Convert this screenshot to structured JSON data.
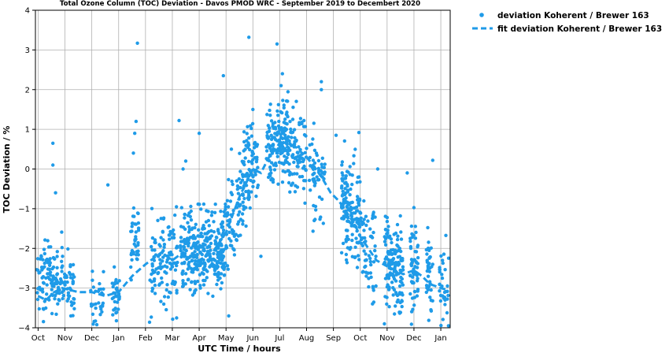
{
  "chart_data": {
    "type": "scatter",
    "title": "Total Ozone Column (TOC) Deviation - Davos PMOD WRC - September 2019 to Decembert 2020",
    "xlabel": "UTC Time / hours",
    "ylabel": "TOC Deviation / %",
    "ylim": [
      -4,
      4
    ],
    "yticks": [
      -4,
      -3,
      -2,
      -1,
      0,
      1,
      2,
      3,
      4
    ],
    "ytick_labels": [
      "−4",
      "−3",
      "−2",
      "−1",
      "0",
      "1",
      "2",
      "3",
      "4"
    ],
    "x_months": [
      "Oct",
      "Nov",
      "Dec",
      "Jan",
      "Feb",
      "Mar",
      "Apr",
      "May",
      "Jun",
      "Jul",
      "Aug",
      "Sep",
      "Oct",
      "Nov",
      "Dec",
      "Jan"
    ],
    "xlim_months": [
      -0.1,
      15.35
    ],
    "grid": true,
    "legend_position": "outside-top-right",
    "colors": {
      "series": "#1f9be8",
      "grid": "#b0b0b0"
    },
    "series": [
      {
        "name": "deviation Koherent  / Brewer 163",
        "kind": "scatter"
      },
      {
        "name": "fit deviation Koherent  / Brewer 163",
        "kind": "dashed-line"
      }
    ],
    "fit_points": [
      {
        "m": 0.0,
        "y": -3.2
      },
      {
        "m": 0.3,
        "y": -3.3
      },
      {
        "m": 0.6,
        "y": -3.1
      },
      {
        "m": 0.9,
        "y": -3.0
      },
      {
        "m": 1.2,
        "y": -3.05
      },
      {
        "m": 1.5,
        "y": -3.1
      },
      {
        "m": 2.0,
        "y": -3.1
      },
      {
        "m": 2.5,
        "y": -3.2
      },
      {
        "m": 3.0,
        "y": -3.1
      },
      {
        "m": 3.5,
        "y": -2.7
      },
      {
        "m": 4.0,
        "y": -2.4
      },
      {
        "m": 4.3,
        "y": -2.25
      },
      {
        "m": 4.6,
        "y": -2.1
      },
      {
        "m": 5.0,
        "y": -2.3
      },
      {
        "m": 5.4,
        "y": -2.1
      },
      {
        "m": 5.7,
        "y": -2.2
      },
      {
        "m": 6.0,
        "y": -2.3
      },
      {
        "m": 6.5,
        "y": -2.1
      },
      {
        "m": 7.0,
        "y": -1.6
      },
      {
        "m": 7.5,
        "y": -0.7
      },
      {
        "m": 8.0,
        "y": 0.0
      },
      {
        "m": 8.3,
        "y": -0.1
      },
      {
        "m": 8.6,
        "y": 0.3
      },
      {
        "m": 9.0,
        "y": 0.65
      },
      {
        "m": 9.3,
        "y": 0.75
      },
      {
        "m": 9.6,
        "y": 0.55
      },
      {
        "m": 10.0,
        "y": 0.3
      },
      {
        "m": 10.3,
        "y": 0.05
      },
      {
        "m": 10.6,
        "y": -0.25
      },
      {
        "m": 10.9,
        "y": -0.6
      },
      {
        "m": 11.2,
        "y": -0.8
      },
      {
        "m": 11.5,
        "y": -1.1
      },
      {
        "m": 11.8,
        "y": -1.4
      },
      {
        "m": 12.0,
        "y": -1.7
      },
      {
        "m": 12.3,
        "y": -2.0
      },
      {
        "m": 12.6,
        "y": -2.3
      },
      {
        "m": 13.0,
        "y": -2.45
      },
      {
        "m": 13.3,
        "y": -2.55
      },
      {
        "m": 13.6,
        "y": -2.65
      },
      {
        "m": 14.0,
        "y": -2.55
      },
      {
        "m": 14.3,
        "y": -2.7
      },
      {
        "m": 14.6,
        "y": -2.9
      },
      {
        "m": 15.0,
        "y": -3.0
      },
      {
        "m": 15.25,
        "y": -3.05
      }
    ],
    "scatter_points": [
      {
        "m": 0.55,
        "y": 0.65
      },
      {
        "m": 0.55,
        "y": 0.1
      },
      {
        "m": 0.65,
        "y": -0.6
      },
      {
        "m": 3.7,
        "y": 3.17
      },
      {
        "m": 3.65,
        "y": 1.2
      },
      {
        "m": 3.6,
        "y": 0.9
      },
      {
        "m": 3.55,
        "y": 0.4
      },
      {
        "m": 2.6,
        "y": -0.4
      },
      {
        "m": 5.25,
        "y": 1.22
      },
      {
        "m": 5.5,
        "y": 0.2
      },
      {
        "m": 5.4,
        "y": 0.0
      },
      {
        "m": 6.0,
        "y": 0.9
      },
      {
        "m": 6.9,
        "y": 2.35
      },
      {
        "m": 7.85,
        "y": 3.32
      },
      {
        "m": 8.9,
        "y": 3.15
      },
      {
        "m": 10.55,
        "y": 2.2
      },
      {
        "m": 10.55,
        "y": 2.0
      },
      {
        "m": 11.1,
        "y": 0.85
      },
      {
        "m": 11.95,
        "y": 0.92
      },
      {
        "m": 12.65,
        "y": 0.0
      },
      {
        "m": 13.75,
        "y": -0.1
      },
      {
        "m": 14.7,
        "y": 0.22
      },
      {
        "m": 8.0,
        "y": 1.5
      },
      {
        "m": 9.1,
        "y": 2.4
      },
      {
        "m": 9.05,
        "y": 2.1
      },
      {
        "m": 7.2,
        "y": 0.5
      },
      {
        "m": 7.4,
        "y": -0.3
      },
      {
        "m": 7.1,
        "y": -3.7
      },
      {
        "m": 8.3,
        "y": -2.2
      },
      {
        "m": 12.9,
        "y": -3.9
      }
    ],
    "scatter_clusters": [
      {
        "m0": -0.05,
        "m1": 0.9,
        "c0": -2.9,
        "c1": -2.6,
        "sd": 0.45,
        "n": 110
      },
      {
        "m0": 0.9,
        "m1": 1.35,
        "c0": -2.8,
        "c1": -3.1,
        "sd": 0.4,
        "n": 45
      },
      {
        "m0": 1.95,
        "m1": 2.45,
        "c0": -3.3,
        "c1": -3.3,
        "sd": 0.35,
        "n": 35
      },
      {
        "m0": 2.75,
        "m1": 3.05,
        "c0": -3.4,
        "c1": -3.1,
        "sd": 0.4,
        "n": 35
      },
      {
        "m0": 3.45,
        "m1": 3.75,
        "c0": -1.8,
        "c1": -1.6,
        "sd": 0.45,
        "n": 40
      },
      {
        "m0": 4.15,
        "m1": 4.4,
        "c0": -2.6,
        "c1": -2.5,
        "sd": 0.6,
        "n": 30
      },
      {
        "m0": 4.45,
        "m1": 5.2,
        "c0": -2.4,
        "c1": -2.1,
        "sd": 0.65,
        "n": 90
      },
      {
        "m0": 5.3,
        "m1": 6.95,
        "c0": -2.2,
        "c1": -2.0,
        "sd": 0.5,
        "n": 330
      },
      {
        "m0": 6.95,
        "m1": 7.5,
        "c0": -1.7,
        "c1": -0.8,
        "sd": 0.55,
        "n": 60
      },
      {
        "m0": 7.5,
        "m1": 8.0,
        "c0": -0.6,
        "c1": 0.3,
        "sd": 0.55,
        "n": 80
      },
      {
        "m0": 8.0,
        "m1": 8.2,
        "c0": 0.3,
        "c1": 0.3,
        "sd": 0.5,
        "n": 25
      },
      {
        "m0": 8.5,
        "m1": 9.3,
        "c0": 0.5,
        "c1": 0.9,
        "sd": 0.55,
        "n": 150
      },
      {
        "m0": 9.3,
        "m1": 10.0,
        "c0": 0.6,
        "c1": 0.3,
        "sd": 0.6,
        "n": 90
      },
      {
        "m0": 10.1,
        "m1": 10.7,
        "c0": -0.2,
        "c1": -0.5,
        "sd": 0.5,
        "n": 60
      },
      {
        "m0": 11.3,
        "m1": 12.0,
        "c0": -0.7,
        "c1": -1.3,
        "sd": 0.6,
        "n": 150
      },
      {
        "m0": 12.0,
        "m1": 12.6,
        "c0": -1.7,
        "c1": -2.1,
        "sd": 0.6,
        "n": 60
      },
      {
        "m0": 12.9,
        "m1": 13.6,
        "c0": -2.3,
        "c1": -2.7,
        "sd": 0.6,
        "n": 150
      },
      {
        "m0": 13.85,
        "m1": 14.15,
        "c0": -2.5,
        "c1": -2.5,
        "sd": 0.55,
        "n": 60
      },
      {
        "m0": 14.45,
        "m1": 14.7,
        "c0": -2.6,
        "c1": -2.9,
        "sd": 0.55,
        "n": 40
      },
      {
        "m0": 14.95,
        "m1": 15.3,
        "c0": -3.0,
        "c1": -3.1,
        "sd": 0.5,
        "n": 35
      }
    ]
  }
}
